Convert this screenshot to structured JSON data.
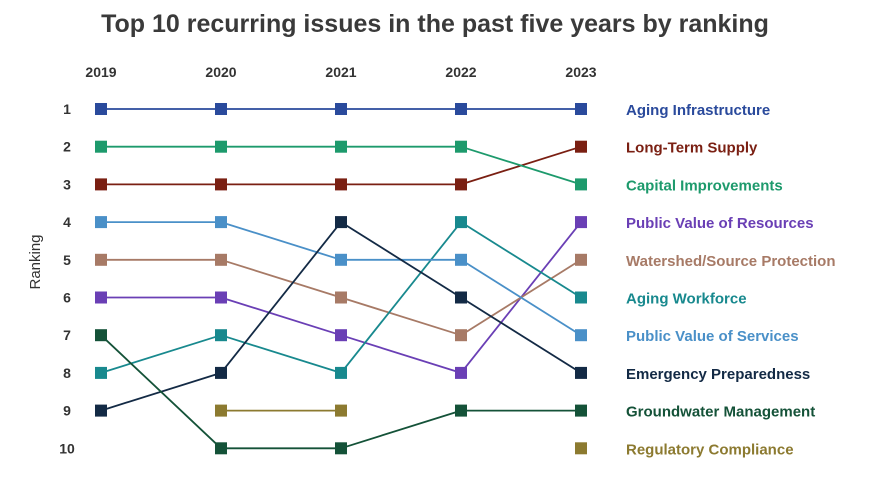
{
  "chart_data": {
    "type": "line",
    "title": "Top 10 recurring issues in the past five years by ranking",
    "ylabel": "Ranking",
    "x": [
      "2019",
      "2020",
      "2021",
      "2022",
      "2023"
    ],
    "ranks": [
      "1",
      "2",
      "3",
      "4",
      "5",
      "6",
      "7",
      "8",
      "9",
      "10"
    ],
    "ylim": [
      1,
      10
    ],
    "y_inverted": true,
    "grid": false,
    "legend_position": "right",
    "series": [
      {
        "name": "Aging Infrastructure",
        "color": "#2a4a9c",
        "values": [
          1,
          1,
          1,
          1,
          1
        ]
      },
      {
        "name": "Long-Term Supply",
        "color": "#7a1f12",
        "values": [
          3,
          3,
          3,
          3,
          2
        ]
      },
      {
        "name": "Capital Improvements",
        "color": "#1d9a6c",
        "values": [
          2,
          2,
          2,
          2,
          3
        ]
      },
      {
        "name": "Public Value of Resources",
        "color": "#6a3fb5",
        "values": [
          6,
          6,
          7,
          8,
          4
        ]
      },
      {
        "name": "Watershed/Source Protection",
        "color": "#a77a66",
        "values": [
          5,
          5,
          6,
          7,
          5
        ]
      },
      {
        "name": "Aging Workforce",
        "color": "#18898e",
        "values": [
          8,
          7,
          8,
          4,
          6
        ]
      },
      {
        "name": "Public Value of Services",
        "color": "#4a90c8",
        "values": [
          4,
          4,
          5,
          5,
          7
        ]
      },
      {
        "name": "Emergency Preparedness",
        "color": "#132a45",
        "values": [
          9,
          8,
          4,
          6,
          8
        ]
      },
      {
        "name": "Groundwater Management",
        "color": "#145238",
        "values": [
          7,
          10,
          10,
          9,
          9
        ]
      },
      {
        "name": "Regulatory Compliance",
        "color": "#8c7a30",
        "values": [
          null,
          9,
          9,
          null,
          10
        ]
      }
    ]
  }
}
